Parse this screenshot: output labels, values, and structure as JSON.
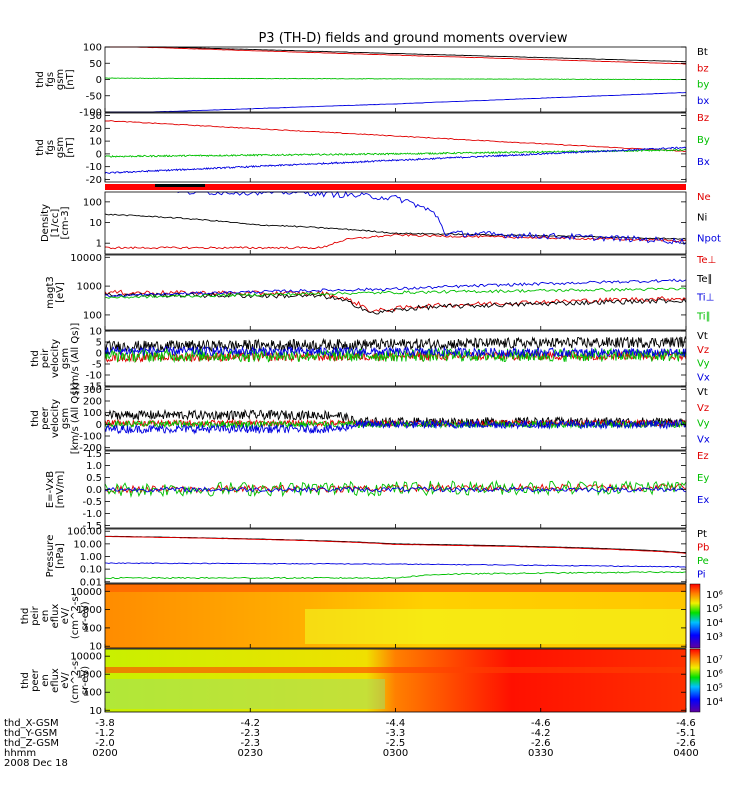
{
  "title": "P3 (TH-D) fields and ground moments overview",
  "colors": {
    "black": "#000000",
    "red": "#e00000",
    "green": "#00c000",
    "blue": "#0000e0"
  },
  "chart_data": {
    "type": "line",
    "x_ticks": [
      "0200",
      "0230",
      "0300",
      "0330",
      "0400"
    ],
    "ephemeris": [
      {
        "label": "thd_X-GSM",
        "values": [
          "-3.8",
          "-4.2",
          "-4.4",
          "-4.6",
          "-4.6"
        ]
      },
      {
        "label": "thd_Y-GSM",
        "values": [
          "-1.2",
          "-2.3",
          "-3.3",
          "-4.2",
          "-5.1"
        ]
      },
      {
        "label": "thd_Z-GSM",
        "values": [
          "-2.0",
          "-2.3",
          "-2.5",
          "-2.6",
          "-2.6"
        ]
      },
      {
        "label": "hhmm",
        "values": []
      },
      {
        "label": "2008 Dec 18",
        "values": []
      }
    ],
    "panels": [
      {
        "ylabel": [
          "thd",
          "fgs",
          "gsm",
          "[nT]"
        ],
        "ylim": [
          -100,
          100
        ],
        "yticks": [
          "100",
          "50",
          "0",
          "-50",
          "-100"
        ],
        "tick_vals": [
          100,
          50,
          0,
          -50,
          -100
        ],
        "series": [
          {
            "name": "Bt",
            "color": "#000000",
            "x": [
              0,
              60,
              120
            ],
            "y": [
              105,
              80,
              55
            ],
            "noise": 0.5
          },
          {
            "name": "bz",
            "color": "#e00000",
            "x": [
              0,
              60,
              120
            ],
            "y": [
              103,
              75,
              48
            ],
            "noise": 0.5
          },
          {
            "name": "by",
            "color": "#00c000",
            "x": [
              0,
              60,
              120
            ],
            "y": [
              4,
              2,
              0
            ],
            "noise": 0.6
          },
          {
            "name": "bx",
            "color": "#0000e0",
            "x": [
              0,
              60,
              120
            ],
            "y": [
              -105,
              -75,
              -40
            ],
            "noise": 0.5
          }
        ]
      },
      {
        "ylabel": [
          "thd",
          "fgs",
          "gsm",
          "[nT]"
        ],
        "ylim": [
          -22,
          32
        ],
        "yticks": [
          "30",
          "20",
          "10",
          "0",
          "-10",
          "-20"
        ],
        "tick_vals": [
          30,
          20,
          10,
          0,
          -10,
          -20
        ],
        "series": [
          {
            "name": "Bz",
            "color": "#e00000",
            "x": [
              0,
              60,
              120
            ],
            "y": [
              26,
              14,
              2
            ],
            "noise": 0.3
          },
          {
            "name": "By",
            "color": "#00c000",
            "x": [
              0,
              60,
              120
            ],
            "y": [
              -2,
              0,
              3
            ],
            "noise": 0.6
          },
          {
            "name": "Bx",
            "color": "#0000e0",
            "x": [
              0,
              60,
              120
            ],
            "y": [
              -15,
              -5,
              5
            ],
            "noise": 0.6
          }
        ]
      },
      {
        "ylabel": [
          "Density",
          "[1/cc]",
          "[cm-3]"
        ],
        "log": true,
        "ylim": [
          0.3,
          300
        ],
        "yticks": [
          "100",
          "10",
          "1"
        ],
        "tick_vals": [
          100,
          10,
          1
        ],
        "series": [
          {
            "name": "Ne",
            "color": "#e00000",
            "x": [
              0,
              45,
              50,
              60,
              70,
              120
            ],
            "y": [
              0.6,
              0.6,
              1.5,
              2.5,
              2.2,
              1.3
            ],
            "noise": 0.05
          },
          {
            "name": "Ni",
            "color": "#000000",
            "x": [
              0,
              30,
              60,
              120
            ],
            "y": [
              25,
              8,
              3,
              1.6
            ],
            "noise": 0.03
          },
          {
            "name": "Npot",
            "color": "#0000e0",
            "x": [
              15,
              40,
              45,
              60,
              65,
              70,
              120
            ],
            "y": [
              300,
              300,
              250,
              150,
              60,
              3,
              1.2
            ],
            "noise": 0.15
          }
        ]
      },
      {
        "ylabel": [
          "magt3",
          "[eV]"
        ],
        "log": true,
        "ylim": [
          30,
          12000
        ],
        "yticks": [
          "10000",
          "1000",
          "100"
        ],
        "tick_vals": [
          10000,
          1000,
          100
        ],
        "series": [
          {
            "name": "Te⊥",
            "color": "#e00000",
            "x": [
              0,
              45,
              55,
              65,
              120
            ],
            "y": [
              600,
              550,
              130,
              200,
              380
            ],
            "noise": 0.08
          },
          {
            "name": "Te∥",
            "color": "#000000",
            "x": [
              0,
              45,
              55,
              65,
              120
            ],
            "y": [
              500,
              450,
              110,
              180,
              320
            ],
            "noise": 0.08
          },
          {
            "name": "Ti⊥",
            "color": "#0000e0",
            "x": [
              0,
              60,
              120
            ],
            "y": [
              450,
              800,
              1600
            ],
            "noise": 0.05
          },
          {
            "name": "Ti∥",
            "color": "#00c000",
            "x": [
              0,
              60,
              120
            ],
            "y": [
              400,
              600,
              800
            ],
            "noise": 0.05
          }
        ]
      },
      {
        "ylabel": [
          "thd",
          "peir",
          "velocity",
          "gsm",
          "[km/s (All Qs)]"
        ],
        "ylim": [
          -15,
          10
        ],
        "yticks": [
          "10",
          "5",
          "0",
          "-5",
          "-10",
          "-15"
        ],
        "tick_vals": [
          10,
          5,
          0,
          -5,
          -10,
          -15
        ],
        "series": [
          {
            "name": "Vt",
            "color": "#000000",
            "x": [
              0,
              120
            ],
            "y": [
              3,
              5
            ],
            "noise": 2.5
          },
          {
            "name": "Vz",
            "color": "#e00000",
            "x": [
              0,
              120
            ],
            "y": [
              -2,
              -1
            ],
            "noise": 2
          },
          {
            "name": "Vy",
            "color": "#00c000",
            "x": [
              0,
              120
            ],
            "y": [
              -1,
              -1
            ],
            "noise": 3
          },
          {
            "name": "Vx",
            "color": "#0000e0",
            "x": [
              0,
              120
            ],
            "y": [
              1,
              0
            ],
            "noise": 2
          }
        ]
      },
      {
        "ylabel": [
          "thd",
          "peer",
          "velocity",
          "gsm",
          "[km/s (All Qs)]"
        ],
        "ylim": [
          -220,
          320
        ],
        "yticks": [
          "300",
          "200",
          "100",
          "0",
          "-100",
          "-200"
        ],
        "tick_vals": [
          300,
          200,
          100,
          0,
          -100,
          -200
        ],
        "series": [
          {
            "name": "Vt",
            "color": "#000000",
            "x": [
              0,
              48,
              52,
              120
            ],
            "y": [
              80,
              80,
              20,
              20
            ],
            "noise": 40
          },
          {
            "name": "Vz",
            "color": "#e00000",
            "x": [
              0,
              120
            ],
            "y": [
              10,
              10
            ],
            "noise": 25
          },
          {
            "name": "Vy",
            "color": "#00c000",
            "x": [
              0,
              120
            ],
            "y": [
              0,
              0
            ],
            "noise": 30
          },
          {
            "name": "Vx",
            "color": "#0000e0",
            "x": [
              0,
              48,
              52,
              120
            ],
            "y": [
              -40,
              -40,
              0,
              0
            ],
            "noise": 35
          }
        ]
      },
      {
        "ylabel": [
          "E=-VxB",
          "[mV/m]"
        ],
        "ylim": [
          -1.6,
          1.6
        ],
        "yticks": [
          "1.5",
          "1.0",
          "0.5",
          "0.0",
          "-0.5",
          "-1.0",
          "-1.5"
        ],
        "tick_vals": [
          1.5,
          1.0,
          0.5,
          0.0,
          -0.5,
          -1.0,
          -1.5
        ],
        "series": [
          {
            "name": "Ez",
            "color": "#e00000",
            "x": [
              0,
              120
            ],
            "y": [
              0,
              0.1
            ],
            "noise": 0.15
          },
          {
            "name": "Ey",
            "color": "#00c000",
            "x": [
              0,
              120
            ],
            "y": [
              0,
              0.1
            ],
            "noise": 0.3
          },
          {
            "name": "Ex",
            "color": "#0000e0",
            "x": [
              0,
              120
            ],
            "y": [
              0,
              0
            ],
            "noise": 0.1
          }
        ]
      },
      {
        "ylabel": [
          "Pressure",
          "[nPa]"
        ],
        "log": true,
        "ylim": [
          0.008,
          150
        ],
        "yticks": [
          "100.00",
          "10.00",
          "1.00",
          "0.10",
          "0.01"
        ],
        "tick_vals": [
          100,
          10,
          1,
          0.1,
          0.01
        ],
        "series": [
          {
            "name": "Pt",
            "color": "#000000",
            "x": [
              0,
              60,
              120
            ],
            "y": [
              40,
              10,
              2
            ],
            "noise": 0.01
          },
          {
            "name": "Pb",
            "color": "#e00000",
            "x": [
              0,
              60,
              120
            ],
            "y": [
              38,
              9,
              1.8
            ],
            "noise": 0.01
          },
          {
            "name": "Pe",
            "color": "#00c000",
            "x": [
              0,
              60,
              70,
              120
            ],
            "y": [
              0.02,
              0.02,
              0.04,
              0.06
            ],
            "noise": 0.05
          },
          {
            "name": "Pi",
            "color": "#0000e0",
            "x": [
              0,
              60,
              120
            ],
            "y": [
              0.3,
              0.25,
              0.15
            ],
            "noise": 0.03
          }
        ]
      },
      {
        "type": "heatmap",
        "ylabel": [
          "thd",
          "peir",
          "en",
          "eflux",
          "eV/",
          "(cm^2-s-",
          "sr-eV)"
        ],
        "log": true,
        "ylim": [
          8,
          25000
        ],
        "yticks": [
          "10000",
          "1000",
          "100",
          "10"
        ],
        "tick_vals": [
          10000,
          1000,
          100,
          10
        ],
        "colorbar": [
          "10⁶",
          "10⁵",
          "10⁴",
          "10³"
        ]
      },
      {
        "type": "heatmap",
        "ylabel": [
          "thd",
          "peer",
          "en",
          "eflux",
          "eV/",
          "(cm^2-s-",
          "sr-eV)"
        ],
        "log": true,
        "ylim": [
          8,
          25000
        ],
        "yticks": [
          "10000",
          "1000",
          "100",
          "10"
        ],
        "tick_vals": [
          10000,
          1000,
          100,
          10
        ],
        "colorbar": [
          "10⁷",
          "10⁶",
          "10⁵",
          "10⁴"
        ]
      }
    ]
  }
}
